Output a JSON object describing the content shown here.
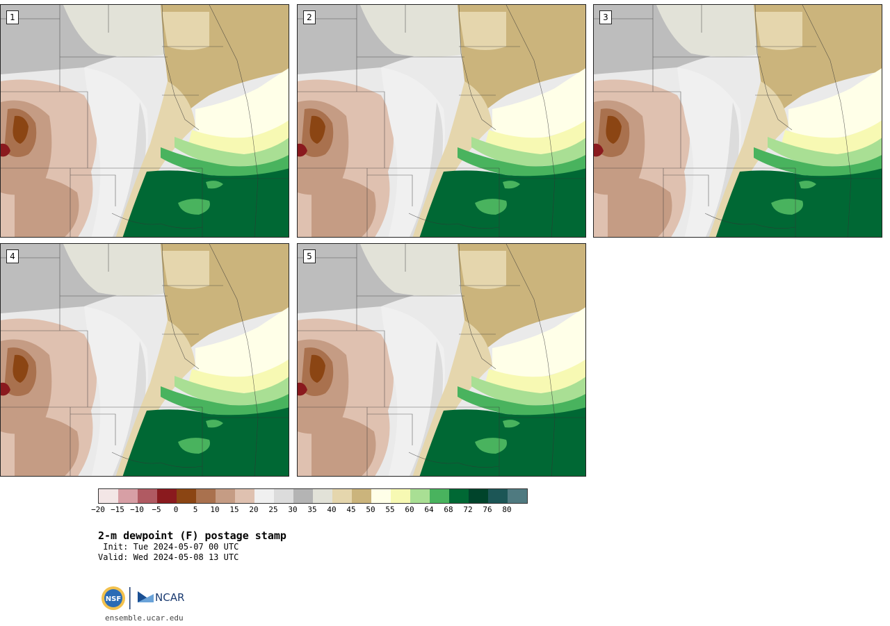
{
  "panels": [
    {
      "label": "1"
    },
    {
      "label": "2"
    },
    {
      "label": "3"
    },
    {
      "label": "4"
    },
    {
      "label": "5"
    }
  ],
  "colorbar": {
    "colors": [
      "#f3e6e6",
      "#d79fa5",
      "#b05a62",
      "#8a1a1e",
      "#8b4513",
      "#a9714e",
      "#c59c84",
      "#dfc1b0",
      "#f0f0f0",
      "#dcdcdc",
      "#b4b4b4",
      "#e2e2d8",
      "#e5d6ad",
      "#cbb47c",
      "#ffffe8",
      "#f7f9b3",
      "#a9df94",
      "#49b35e",
      "#006834",
      "#00442b",
      "#1c5656",
      "#4f7a80"
    ],
    "tick_labels": [
      "−20",
      "−15",
      "−10",
      "−5",
      "0",
      "5",
      "10",
      "15",
      "20",
      "25",
      "30",
      "35",
      "40",
      "45",
      "50",
      "55",
      "60",
      "64",
      "68",
      "72",
      "76",
      "80"
    ]
  },
  "title": "2-m dewpoint (F) postage stamp",
  "init": " Init: Tue 2024-05-07 00 UTC",
  "valid": "Valid: Wed 2024-05-08 13 UTC",
  "logo": {
    "nsf_text": "NSF",
    "ncar_text": "NCAR"
  },
  "url": "ensemble.ucar.edu"
}
